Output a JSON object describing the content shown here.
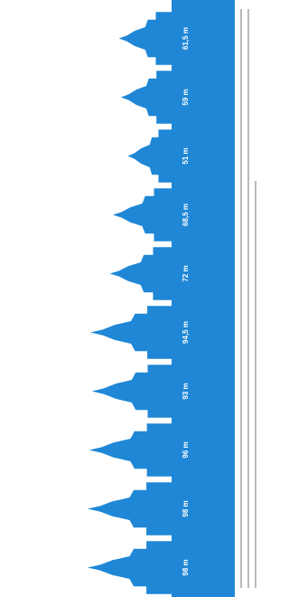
{
  "chart_data": {
    "type": "bar",
    "orientation": "rotated",
    "values": [
      98,
      98,
      96,
      93,
      94.5,
      72,
      68.5,
      51,
      59,
      61.5
    ],
    "value_labels": [
      "98 m",
      "98 m",
      "96 m",
      "93 m",
      "94,5 m",
      "72 m",
      "68,5 m",
      "51 m",
      "59 m",
      "61,5 m"
    ],
    "color": "#1f87d6",
    "ylim": [
      0,
      200
    ]
  }
}
